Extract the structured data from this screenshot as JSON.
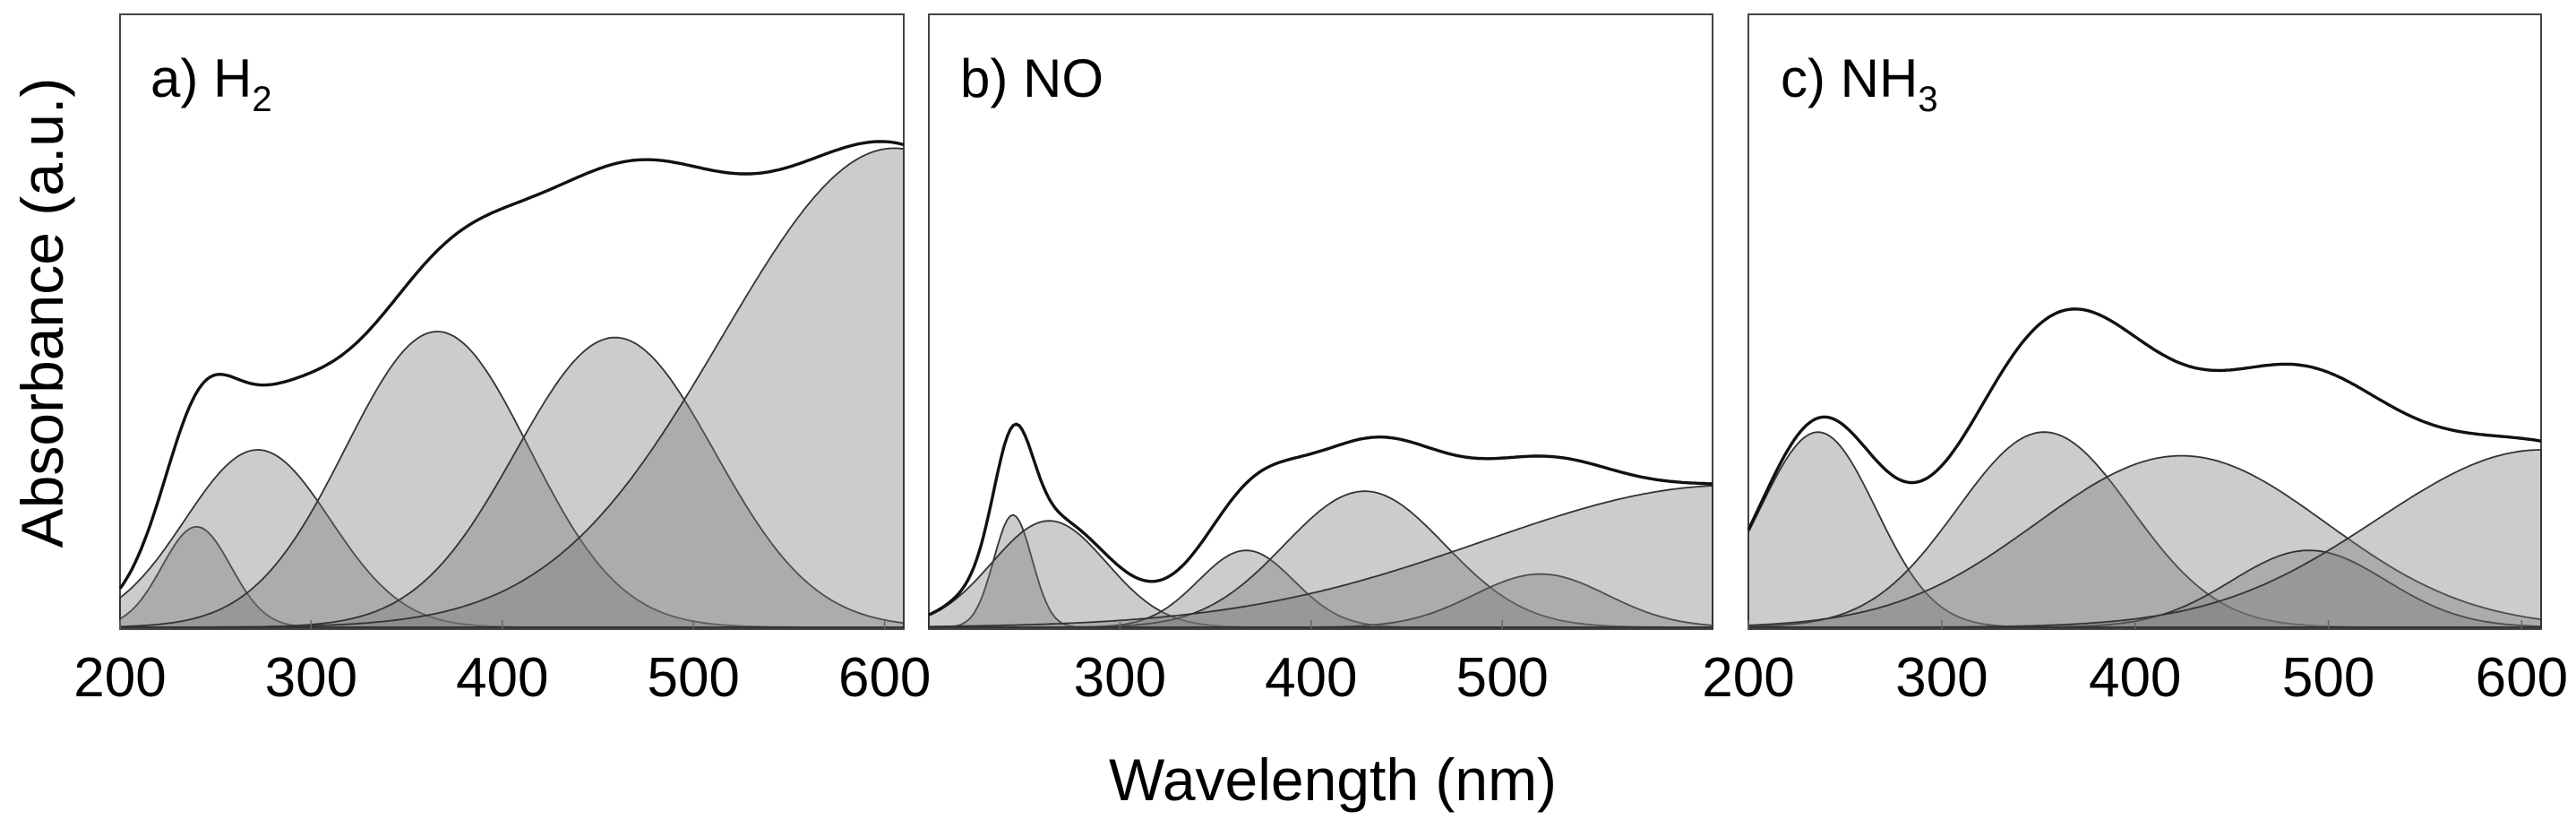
{
  "chart_data": {
    "type": "area",
    "ylabel": "Absorbance (a.u.)",
    "xlabel": "Wavelength (nm)",
    "panels": [
      {
        "id": "a",
        "label_prefix": "a) H",
        "label_sub": "2",
        "xlim": [
          200,
          610
        ],
        "ylim": [
          0,
          1
        ],
        "xticks": [
          200,
          300,
          400,
          500,
          600
        ],
        "components": [
          {
            "center": 240,
            "amp": 0.17,
            "sigma": 18
          },
          {
            "center": 272,
            "amp": 0.3,
            "sigma": 38
          },
          {
            "center": 366,
            "amp": 0.5,
            "sigma": 48
          },
          {
            "center": 459,
            "amp": 0.49,
            "sigma": 52
          },
          {
            "center": 605,
            "amp": 0.81,
            "sigma": 90
          }
        ]
      },
      {
        "id": "b",
        "label_prefix": "b) NO",
        "label_sub": "",
        "xlim": [
          200,
          610
        ],
        "ylim": [
          0,
          1
        ],
        "xticks": [
          300,
          400,
          500
        ],
        "components": [
          {
            "center": 244,
            "amp": 0.19,
            "sigma": 10
          },
          {
            "center": 263,
            "amp": 0.18,
            "sigma": 30
          },
          {
            "center": 366,
            "amp": 0.13,
            "sigma": 25
          },
          {
            "center": 428,
            "amp": 0.23,
            "sigma": 42
          },
          {
            "center": 520,
            "amp": 0.09,
            "sigma": 35
          },
          {
            "center": 620,
            "amp": 0.24,
            "sigma": 130
          }
        ]
      },
      {
        "id": "c",
        "label_prefix": "c) NH",
        "label_sub": "3",
        "xlim": [
          200,
          610
        ],
        "ylim": [
          0,
          1
        ],
        "xticks": [
          200,
          300,
          400,
          500,
          600
        ],
        "components": [
          {
            "center": 236,
            "amp": 0.33,
            "sigma": 30
          },
          {
            "center": 353,
            "amp": 0.33,
            "sigma": 45
          },
          {
            "center": 424,
            "amp": 0.29,
            "sigma": 75
          },
          {
            "center": 490,
            "amp": 0.13,
            "sigma": 40
          },
          {
            "center": 610,
            "amp": 0.3,
            "sigma": 85
          }
        ]
      }
    ]
  }
}
